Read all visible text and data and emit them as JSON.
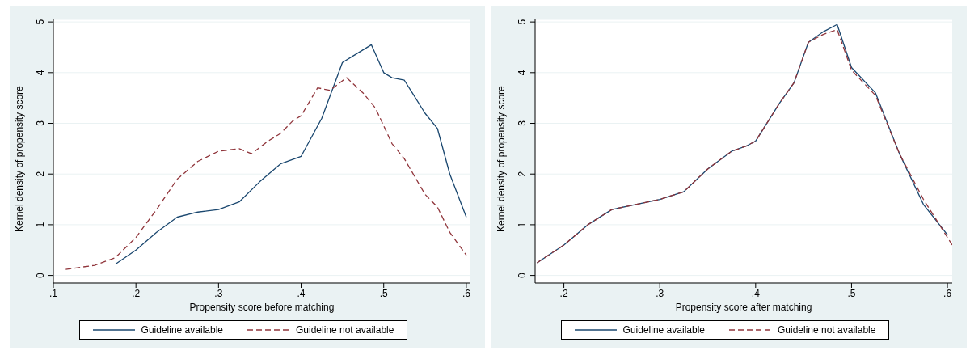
{
  "chart_data": [
    {
      "type": "line",
      "xlabel": "Propensity score before matching",
      "ylabel": "Kernel density of propensity score",
      "xlim": [
        0.1,
        0.605
      ],
      "xticks": [
        {
          "value": 0.1,
          "label": ".1"
        },
        {
          "value": 0.2,
          "label": ".2"
        },
        {
          "value": 0.3,
          "label": ".3"
        },
        {
          "value": 0.4,
          "label": ".4"
        },
        {
          "value": 0.5,
          "label": ".5"
        },
        {
          "value": 0.6,
          "label": ".6"
        }
      ],
      "ylim": [
        -0.15,
        5.05
      ],
      "yticks": [
        0,
        1,
        2,
        3,
        4,
        5
      ],
      "grid": "y",
      "legend": "bottom",
      "marker": "none",
      "series": [
        {
          "name": "Guideline available",
          "color": "#1a476f",
          "line_style": "solid",
          "x": [
            0.175,
            0.2,
            0.225,
            0.25,
            0.275,
            0.3,
            0.325,
            0.35,
            0.375,
            0.4,
            0.425,
            0.45,
            0.465,
            0.485,
            0.5,
            0.51,
            0.525,
            0.55,
            0.565,
            0.58,
            0.6
          ],
          "values": [
            0.22,
            0.5,
            0.85,
            1.15,
            1.25,
            1.3,
            1.45,
            1.85,
            2.2,
            2.35,
            3.1,
            4.2,
            4.35,
            4.55,
            4.0,
            3.9,
            3.85,
            3.2,
            2.9,
            2.0,
            1.15
          ]
        },
        {
          "name": "Guideline not available",
          "color": "#90353b",
          "line_style": "dashed",
          "x": [
            0.115,
            0.15,
            0.175,
            0.2,
            0.225,
            0.25,
            0.275,
            0.3,
            0.325,
            0.34,
            0.36,
            0.375,
            0.39,
            0.4,
            0.42,
            0.435,
            0.455,
            0.475,
            0.49,
            0.51,
            0.525,
            0.55,
            0.565,
            0.58,
            0.6
          ],
          "values": [
            0.12,
            0.2,
            0.35,
            0.75,
            1.3,
            1.9,
            2.25,
            2.45,
            2.5,
            2.4,
            2.65,
            2.8,
            3.05,
            3.15,
            3.7,
            3.65,
            3.9,
            3.6,
            3.3,
            2.6,
            2.3,
            1.6,
            1.35,
            0.85,
            0.4
          ]
        }
      ]
    },
    {
      "type": "line",
      "xlabel": "Propensity score after matching",
      "ylabel": "Kernel density of propensity score",
      "xlim": [
        0.17,
        0.605
      ],
      "xticks": [
        {
          "value": 0.2,
          "label": ".2"
        },
        {
          "value": 0.3,
          "label": ".3"
        },
        {
          "value": 0.4,
          "label": ".4"
        },
        {
          "value": 0.5,
          "label": ".5"
        },
        {
          "value": 0.6,
          "label": ".6"
        }
      ],
      "ylim": [
        -0.15,
        5.05
      ],
      "yticks": [
        0,
        1,
        2,
        3,
        4,
        5
      ],
      "grid": "y",
      "legend": "bottom",
      "marker": "none",
      "series": [
        {
          "name": "Guideline available",
          "color": "#1a476f",
          "line_style": "solid",
          "x": [
            0.172,
            0.2,
            0.225,
            0.25,
            0.275,
            0.3,
            0.325,
            0.35,
            0.375,
            0.39,
            0.4,
            0.425,
            0.44,
            0.455,
            0.47,
            0.485,
            0.5,
            0.525,
            0.55,
            0.575,
            0.6
          ],
          "values": [
            0.25,
            0.6,
            1.0,
            1.3,
            1.4,
            1.5,
            1.65,
            2.1,
            2.45,
            2.55,
            2.65,
            3.4,
            3.8,
            4.6,
            4.8,
            4.95,
            4.1,
            3.6,
            2.4,
            1.4,
            0.8
          ]
        },
        {
          "name": "Guideline not available",
          "color": "#90353b",
          "line_style": "dashed",
          "x": [
            0.172,
            0.2,
            0.225,
            0.25,
            0.275,
            0.3,
            0.325,
            0.35,
            0.375,
            0.39,
            0.4,
            0.425,
            0.44,
            0.455,
            0.47,
            0.485,
            0.5,
            0.525,
            0.55,
            0.575,
            0.605
          ],
          "values": [
            0.25,
            0.6,
            1.0,
            1.3,
            1.4,
            1.5,
            1.65,
            2.1,
            2.45,
            2.55,
            2.65,
            3.4,
            3.8,
            4.6,
            4.75,
            4.85,
            4.05,
            3.55,
            2.4,
            1.5,
            0.6
          ]
        }
      ]
    }
  ]
}
